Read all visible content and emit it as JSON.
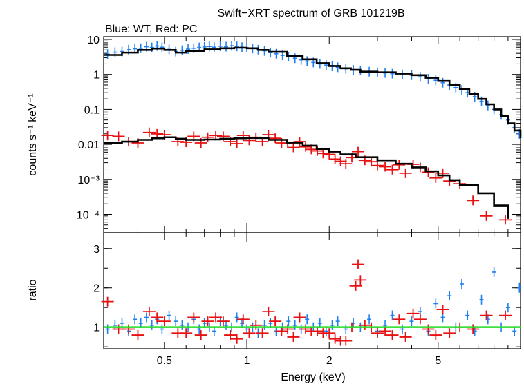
{
  "chart_data": {
    "type": "scatter",
    "title": "Swift−XRT spectrum of GRB 101219B",
    "subtitle": "Blue: WT, Red: PC",
    "xlabel": "Energy (keV)",
    "xscale": "log",
    "xlim": [
      0.3,
      10
    ],
    "x_ticks": [
      {
        "value": 0.5,
        "label": "0.5"
      },
      {
        "value": 1,
        "label": "1"
      },
      {
        "value": 2,
        "label": "2"
      },
      {
        "value": 5,
        "label": "5"
      }
    ],
    "grid": false,
    "legend": "none",
    "colors": {
      "WT": "#2080f0",
      "PC": "#e81010",
      "model": "#000000",
      "unity": "#22dd22"
    },
    "panels": [
      {
        "id": "spectrum",
        "ylabel": "counts s⁻¹ keV⁻¹",
        "yscale": "log",
        "ylim": [
          3e-05,
          12
        ],
        "y_ticks": [
          {
            "value": 10,
            "label": "10"
          },
          {
            "value": 1,
            "label": "1"
          },
          {
            "value": 0.1,
            "label": "0.1"
          },
          {
            "value": 0.01,
            "label": "0.01"
          },
          {
            "value": 0.001,
            "label": "10⁻³"
          },
          {
            "value": 0.0001,
            "label": "10⁻⁴"
          }
        ],
        "model_WT": [
          [
            0.3,
            3.6
          ],
          [
            0.35,
            4.2
          ],
          [
            0.4,
            5.0
          ],
          [
            0.45,
            5.5
          ],
          [
            0.5,
            5.0
          ],
          [
            0.55,
            4.2
          ],
          [
            0.6,
            4.6
          ],
          [
            0.7,
            5.2
          ],
          [
            0.8,
            5.6
          ],
          [
            0.9,
            5.8
          ],
          [
            1.0,
            5.6
          ],
          [
            1.1,
            5.0
          ],
          [
            1.2,
            4.4
          ],
          [
            1.4,
            3.4
          ],
          [
            1.6,
            2.7
          ],
          [
            1.8,
            2.1
          ],
          [
            2.0,
            1.75
          ],
          [
            2.2,
            1.5
          ],
          [
            2.4,
            1.35
          ],
          [
            2.6,
            1.2
          ],
          [
            3.0,
            1.15
          ],
          [
            3.5,
            1.05
          ],
          [
            4.0,
            0.95
          ],
          [
            4.5,
            0.8
          ],
          [
            5.0,
            0.65
          ],
          [
            5.5,
            0.5
          ],
          [
            6.0,
            0.38
          ],
          [
            6.5,
            0.28
          ],
          [
            7.0,
            0.2
          ],
          [
            7.5,
            0.14
          ],
          [
            8.0,
            0.1
          ],
          [
            8.5,
            0.065
          ],
          [
            9.0,
            0.04
          ],
          [
            9.5,
            0.025
          ],
          [
            10.0,
            0.015
          ]
        ],
        "model_PC": [
          [
            0.3,
            0.011
          ],
          [
            0.35,
            0.012
          ],
          [
            0.4,
            0.0135
          ],
          [
            0.45,
            0.015
          ],
          [
            0.5,
            0.016
          ],
          [
            0.55,
            0.0145
          ],
          [
            0.6,
            0.0135
          ],
          [
            0.7,
            0.0138
          ],
          [
            0.8,
            0.0145
          ],
          [
            0.9,
            0.015
          ],
          [
            1.0,
            0.0152
          ],
          [
            1.2,
            0.0135
          ],
          [
            1.4,
            0.0112
          ],
          [
            1.6,
            0.0092
          ],
          [
            1.8,
            0.0074
          ],
          [
            2.0,
            0.0062
          ],
          [
            2.2,
            0.0052
          ],
          [
            2.5,
            0.0043
          ],
          [
            3.0,
            0.0035
          ],
          [
            3.5,
            0.0028
          ],
          [
            4.0,
            0.0022
          ],
          [
            4.5,
            0.0017
          ],
          [
            5.0,
            0.0013
          ],
          [
            5.5,
            0.00095
          ],
          [
            6.0,
            0.0007
          ],
          [
            7.0,
            0.0004
          ],
          [
            8.0,
            0.00018
          ],
          [
            9.0,
            7.5e-05
          ]
        ],
        "WT_points": [
          [
            0.31,
            3.8
          ],
          [
            0.33,
            4.3
          ],
          [
            0.35,
            4.5
          ],
          [
            0.37,
            5.1
          ],
          [
            0.39,
            5.4
          ],
          [
            0.41,
            5.6
          ],
          [
            0.43,
            6.2
          ],
          [
            0.45,
            5.9
          ],
          [
            0.47,
            6.5
          ],
          [
            0.49,
            6.0
          ],
          [
            0.52,
            5.2
          ],
          [
            0.55,
            4.5
          ],
          [
            0.58,
            4.9
          ],
          [
            0.61,
            5.3
          ],
          [
            0.64,
            5.6
          ],
          [
            0.67,
            5.9
          ],
          [
            0.7,
            6.1
          ],
          [
            0.73,
            6.3
          ],
          [
            0.76,
            6.0
          ],
          [
            0.8,
            6.4
          ],
          [
            0.84,
            6.2
          ],
          [
            0.88,
            6.6
          ],
          [
            0.92,
            6.3
          ],
          [
            0.96,
            6.0
          ],
          [
            1.0,
            5.8
          ],
          [
            1.05,
            5.5
          ],
          [
            1.1,
            5.1
          ],
          [
            1.16,
            4.7
          ],
          [
            1.22,
            4.2
          ],
          [
            1.28,
            3.9
          ],
          [
            1.35,
            3.5
          ],
          [
            1.42,
            3.2
          ],
          [
            1.5,
            2.9
          ],
          [
            1.58,
            2.6
          ],
          [
            1.66,
            2.4
          ],
          [
            1.75,
            2.2
          ],
          [
            1.85,
            2.0
          ],
          [
            1.95,
            1.85
          ],
          [
            2.05,
            1.7
          ],
          [
            2.15,
            1.6
          ],
          [
            2.3,
            1.45
          ],
          [
            2.45,
            1.35
          ],
          [
            2.6,
            1.3
          ],
          [
            2.8,
            1.2
          ],
          [
            3.0,
            1.15
          ],
          [
            3.2,
            1.1
          ],
          [
            3.4,
            1.05
          ],
          [
            3.7,
            1.0
          ],
          [
            4.0,
            0.95
          ],
          [
            4.3,
            0.85
          ],
          [
            4.6,
            0.75
          ],
          [
            4.9,
            0.68
          ],
          [
            5.2,
            0.58
          ],
          [
            5.5,
            0.5
          ],
          [
            5.8,
            0.42
          ],
          [
            6.1,
            0.36
          ],
          [
            6.4,
            0.3
          ],
          [
            6.8,
            0.23
          ],
          [
            7.2,
            0.17
          ],
          [
            7.6,
            0.13
          ],
          [
            8.0,
            0.1
          ],
          [
            8.5,
            0.07
          ],
          [
            9.0,
            0.05
          ],
          [
            9.5,
            0.03
          ],
          [
            9.9,
            0.02
          ]
        ],
        "PC_points": [
          [
            0.31,
            0.018
          ],
          [
            0.34,
            0.017
          ],
          [
            0.37,
            0.012
          ],
          [
            0.4,
            0.011
          ],
          [
            0.44,
            0.022
          ],
          [
            0.47,
            0.02
          ],
          [
            0.5,
            0.019
          ],
          [
            0.56,
            0.012
          ],
          [
            0.6,
            0.0115
          ],
          [
            0.64,
            0.017
          ],
          [
            0.68,
            0.011
          ],
          [
            0.72,
            0.016
          ],
          [
            0.77,
            0.018
          ],
          [
            0.82,
            0.017
          ],
          [
            0.87,
            0.012
          ],
          [
            0.92,
            0.0105
          ],
          [
            0.97,
            0.018
          ],
          [
            1.02,
            0.013
          ],
          [
            1.08,
            0.016
          ],
          [
            1.14,
            0.012
          ],
          [
            1.2,
            0.019
          ],
          [
            1.27,
            0.015
          ],
          [
            1.34,
            0.011
          ],
          [
            1.41,
            0.0105
          ],
          [
            1.48,
            0.0082
          ],
          [
            1.56,
            0.012
          ],
          [
            1.64,
            0.0085
          ],
          [
            1.72,
            0.0072
          ],
          [
            1.81,
            0.0065
          ],
          [
            1.9,
            0.0055
          ],
          [
            2.0,
            0.0052
          ],
          [
            2.1,
            0.0038
          ],
          [
            2.2,
            0.0033
          ],
          [
            2.3,
            0.0028
          ],
          [
            2.42,
            0.0042
          ],
          [
            2.55,
            0.0062
          ],
          [
            2.7,
            0.0035
          ],
          [
            2.85,
            0.0032
          ],
          [
            3.0,
            0.0025
          ],
          [
            3.2,
            0.0023
          ],
          [
            3.4,
            0.0019
          ],
          [
            3.6,
            0.0026
          ],
          [
            3.8,
            0.0015
          ],
          [
            4.05,
            0.0027
          ],
          [
            4.3,
            0.0022
          ],
          [
            4.6,
            0.0016
          ],
          [
            4.9,
            0.0011
          ],
          [
            5.2,
            0.0015
          ],
          [
            5.5,
            0.0009
          ],
          [
            6.0,
            0.00075
          ],
          [
            6.7,
            0.00025
          ],
          [
            7.5,
            9e-05
          ],
          [
            8.8,
            7e-05
          ]
        ]
      },
      {
        "id": "ratio",
        "ylabel": "ratio",
        "yscale": "linear",
        "ylim": [
          0.45,
          3.4
        ],
        "y_ticks": [
          {
            "value": 1,
            "label": "1"
          },
          {
            "value": 2,
            "label": "2"
          },
          {
            "value": 3,
            "label": "3"
          }
        ],
        "unity_line": 1,
        "WT_points": [
          [
            0.31,
            0.95
          ],
          [
            0.33,
            1.05
          ],
          [
            0.35,
            1.1
          ],
          [
            0.37,
            0.9
          ],
          [
            0.39,
            1.2
          ],
          [
            0.41,
            1.1
          ],
          [
            0.43,
            1.25
          ],
          [
            0.45,
            1.05
          ],
          [
            0.47,
            1.2
          ],
          [
            0.49,
            0.95
          ],
          [
            0.52,
            1.3
          ],
          [
            0.55,
            1.15
          ],
          [
            0.58,
            1.05
          ],
          [
            0.61,
            1.0
          ],
          [
            0.64,
            1.2
          ],
          [
            0.67,
            0.95
          ],
          [
            0.7,
            1.1
          ],
          [
            0.73,
            1.0
          ],
          [
            0.76,
            0.9
          ],
          [
            0.8,
            1.15
          ],
          [
            0.84,
            1.05
          ],
          [
            0.88,
            1.0
          ],
          [
            0.92,
            1.25
          ],
          [
            0.96,
            1.1
          ],
          [
            1.0,
            0.95
          ],
          [
            1.05,
            1.0
          ],
          [
            1.1,
            0.85
          ],
          [
            1.16,
            1.05
          ],
          [
            1.22,
            1.1
          ],
          [
            1.28,
            0.9
          ],
          [
            1.35,
            1.0
          ],
          [
            1.42,
            1.15
          ],
          [
            1.5,
            1.05
          ],
          [
            1.58,
            0.95
          ],
          [
            1.66,
            1.2
          ],
          [
            1.75,
            1.0
          ],
          [
            1.85,
            1.1
          ],
          [
            1.95,
            0.9
          ],
          [
            2.05,
            1.05
          ],
          [
            2.15,
            1.15
          ],
          [
            2.3,
            0.95
          ],
          [
            2.45,
            1.1
          ],
          [
            2.6,
            1.0
          ],
          [
            2.8,
            1.2
          ],
          [
            3.0,
            0.9
          ],
          [
            3.2,
            1.05
          ],
          [
            3.4,
            1.3
          ],
          [
            3.7,
            0.95
          ],
          [
            4.0,
            1.15
          ],
          [
            4.3,
            1.4
          ],
          [
            4.6,
            0.9
          ],
          [
            4.9,
            1.6
          ],
          [
            5.2,
            1.25
          ],
          [
            5.5,
            1.8
          ],
          [
            5.8,
            1.0
          ],
          [
            6.1,
            2.1
          ],
          [
            6.4,
            1.3
          ],
          [
            6.8,
            0.9
          ],
          [
            7.2,
            1.7
          ],
          [
            7.6,
            1.2
          ],
          [
            8.0,
            2.4
          ],
          [
            8.5,
            1.0
          ],
          [
            9.0,
            1.5
          ],
          [
            9.5,
            0.9
          ],
          [
            9.9,
            2.0
          ]
        ],
        "PC_points": [
          [
            0.31,
            1.65
          ],
          [
            0.34,
            0.95
          ],
          [
            0.37,
            0.95
          ],
          [
            0.4,
            0.8
          ],
          [
            0.44,
            1.4
          ],
          [
            0.47,
            1.25
          ],
          [
            0.5,
            1.15
          ],
          [
            0.56,
            0.85
          ],
          [
            0.6,
            0.85
          ],
          [
            0.64,
            1.25
          ],
          [
            0.68,
            0.8
          ],
          [
            0.72,
            1.15
          ],
          [
            0.77,
            1.25
          ],
          [
            0.82,
            1.15
          ],
          [
            0.87,
            0.8
          ],
          [
            0.92,
            0.7
          ],
          [
            0.97,
            1.2
          ],
          [
            1.02,
            0.85
          ],
          [
            1.08,
            1.05
          ],
          [
            1.14,
            0.85
          ],
          [
            1.2,
            1.4
          ],
          [
            1.27,
            1.15
          ],
          [
            1.34,
            0.9
          ],
          [
            1.41,
            0.95
          ],
          [
            1.48,
            0.75
          ],
          [
            1.56,
            1.25
          ],
          [
            1.64,
            0.95
          ],
          [
            1.72,
            0.9
          ],
          [
            1.81,
            0.9
          ],
          [
            1.9,
            0.85
          ],
          [
            2.0,
            0.85
          ],
          [
            2.1,
            0.7
          ],
          [
            2.2,
            0.65
          ],
          [
            2.3,
            0.65
          ],
          [
            2.42,
            1.0
          ],
          [
            2.5,
            2.05
          ],
          [
            2.55,
            2.6
          ],
          [
            2.6,
            2.2
          ],
          [
            2.7,
            1.05
          ],
          [
            2.85,
            1.0
          ],
          [
            3.0,
            0.85
          ],
          [
            3.2,
            0.9
          ],
          [
            3.4,
            0.8
          ],
          [
            3.6,
            1.2
          ],
          [
            3.8,
            0.75
          ],
          [
            4.05,
            1.35
          ],
          [
            4.3,
            1.2
          ],
          [
            4.6,
            0.95
          ],
          [
            4.9,
            0.8
          ],
          [
            5.2,
            1.45
          ],
          [
            5.5,
            0.85
          ],
          [
            6.0,
            1.0
          ],
          [
            6.7,
            0.95
          ],
          [
            7.5,
            1.3
          ],
          [
            8.8,
            1.3
          ]
        ]
      }
    ]
  }
}
